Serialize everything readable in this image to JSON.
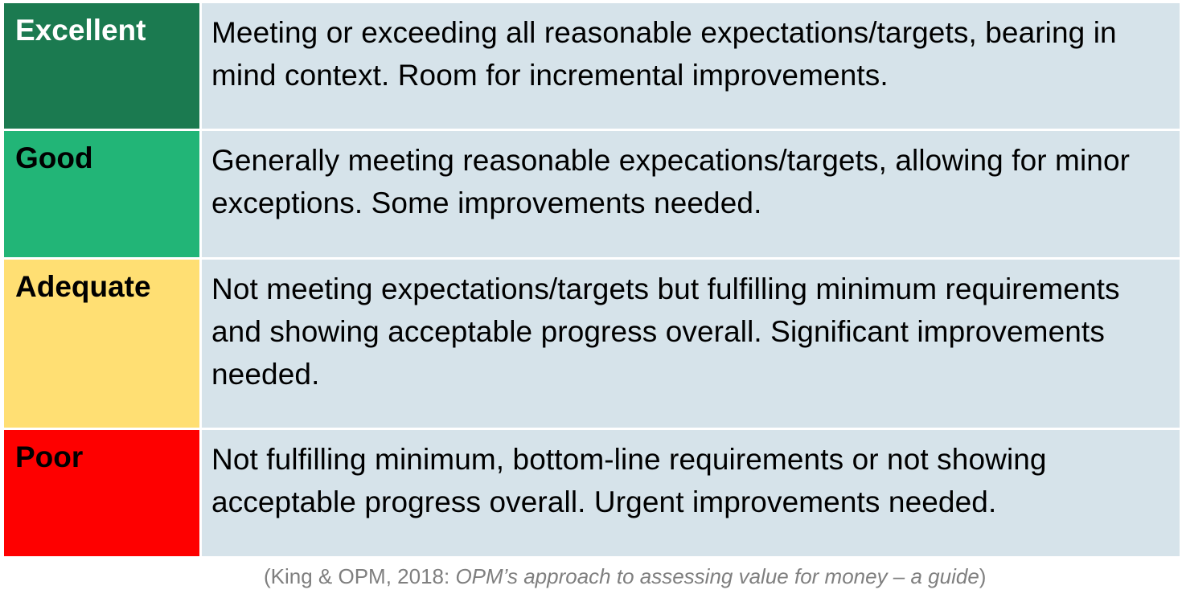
{
  "levels": [
    {
      "label": "Excellent",
      "description": "Meeting or exceeding all reasonable expectations/targets, bearing in mind context. Room for incremental improvements.",
      "bg_color": "#1b7a50",
      "text_color": "#ffffff"
    },
    {
      "label": "Good",
      "description": "Generally meeting reasonable expecations/targets, allowing for minor exceptions. Some improvements needed.",
      "bg_color": "#22b577",
      "text_color": "#000000"
    },
    {
      "label": "Adequate",
      "description": "Not meeting expectations/targets but fulfilling minimum requirements and showing acceptable progress overall. Significant improvements needed.",
      "bg_color": "#ffdf73",
      "text_color": "#000000"
    },
    {
      "label": "Poor",
      "description": "Not fulfilling minimum, bottom-line requirements or not showing acceptable progress overall. Urgent improvements needed.",
      "bg_color": "#fe0000",
      "text_color": "#000000"
    }
  ],
  "caption": {
    "prefix": "(King & OPM, 2018: ",
    "title": "OPM’s approach to assessing value for money – a guide",
    "suffix": ")"
  }
}
